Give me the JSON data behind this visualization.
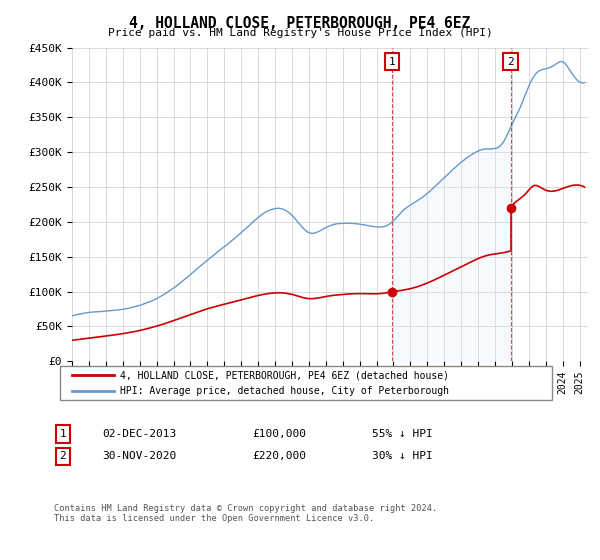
{
  "title": "4, HOLLAND CLOSE, PETERBOROUGH, PE4 6EZ",
  "subtitle": "Price paid vs. HM Land Registry's House Price Index (HPI)",
  "ylabel_ticks": [
    "£0",
    "£50K",
    "£100K",
    "£150K",
    "£200K",
    "£250K",
    "£300K",
    "£350K",
    "£400K",
    "£450K"
  ],
  "ylim": [
    0,
    450000
  ],
  "xlim_start": 1995.0,
  "xlim_end": 2025.5,
  "sale1": {
    "date": "02-DEC-2013",
    "year": 2013.92,
    "price": 100000,
    "label": "1"
  },
  "sale2": {
    "date": "30-NOV-2020",
    "year": 2020.92,
    "price": 220000,
    "label": "2"
  },
  "legend_red": "4, HOLLAND CLOSE, PETERBOROUGH, PE4 6EZ (detached house)",
  "legend_blue": "HPI: Average price, detached house, City of Peterborough",
  "table_row1": [
    "1",
    "02-DEC-2013",
    "£100,000",
    "55% ↓ HPI"
  ],
  "table_row2": [
    "2",
    "30-NOV-2020",
    "£220,000",
    "30% ↓ HPI"
  ],
  "footer": "Contains HM Land Registry data © Crown copyright and database right 2024.\nThis data is licensed under the Open Government Licence v3.0.",
  "red_color": "#cc0000",
  "blue_color": "#6699cc",
  "blue_fill_color": "#ddeeff",
  "background_color": "#ffffff",
  "grid_color": "#cccccc"
}
